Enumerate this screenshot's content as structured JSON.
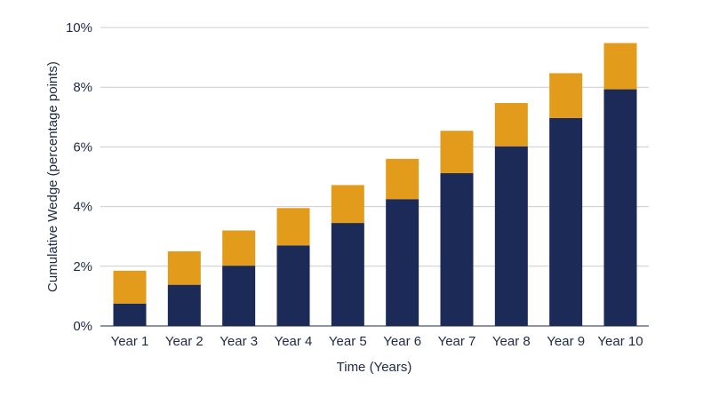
{
  "chart_data": {
    "type": "bar",
    "stacked": true,
    "categories": [
      "Year 1",
      "Year 2",
      "Year 3",
      "Year 4",
      "Year 5",
      "Year 6",
      "Year 7",
      "Year 8",
      "Year 9",
      "Year 10"
    ],
    "series": [
      {
        "color": "#1b2a57",
        "values": [
          0.75,
          1.38,
          2.02,
          2.7,
          3.45,
          4.25,
          5.12,
          6.02,
          6.97,
          7.93
        ]
      },
      {
        "color": "#e39b1b",
        "values": [
          1.1,
          1.12,
          1.18,
          1.25,
          1.27,
          1.35,
          1.42,
          1.45,
          1.5,
          1.55
        ]
      }
    ],
    "xlabel": "Time (Years)",
    "ylabel": "Cumulative Wedge (percentage points)",
    "ylim": [
      0,
      10
    ],
    "yticks": [
      "0%",
      "2%",
      "4%",
      "6%",
      "8%",
      "10%"
    ],
    "grid": true,
    "legend": "none"
  }
}
